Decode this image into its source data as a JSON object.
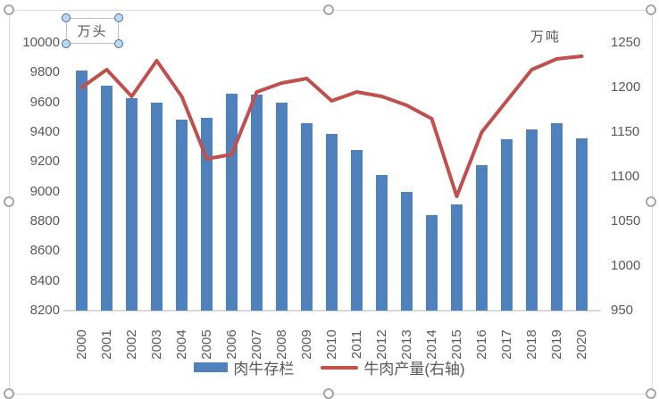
{
  "chart": {
    "textbox": {
      "label": "万头"
    },
    "right_axis_title": "万吨",
    "frame_color": "#D9D9D9",
    "handle_color": "#A6A6A6",
    "legend": [
      {
        "label": "肉牛存栏",
        "swatch": "bar",
        "color": "#4F81BD"
      },
      {
        "label": "牛肉产量(右轴)",
        "swatch": "line",
        "color": "#C0504D"
      }
    ]
  },
  "chart_data": {
    "type": "bar",
    "title": "",
    "grid": false,
    "legend_position": "bottom",
    "categories": [
      "2000",
      "2001",
      "2002",
      "2003",
      "2004",
      "2005",
      "2006",
      "2007",
      "2008",
      "2009",
      "2010",
      "2011",
      "2012",
      "2013",
      "2014",
      "2015",
      "2016",
      "2017",
      "2018",
      "2019",
      "2020"
    ],
    "series": [
      {
        "name": "肉牛存栏",
        "render": "bar",
        "axis": "left",
        "unit": "万头",
        "color": "#4F81BD",
        "values": [
          9815,
          9715,
          9630,
          9600,
          9485,
          9495,
          9660,
          9650,
          9600,
          9460,
          9390,
          9280,
          9110,
          9000,
          8840,
          8915,
          9180,
          9350,
          9420,
          9460,
          9360
        ]
      },
      {
        "name": "牛肉产量(右轴)",
        "render": "line",
        "axis": "right",
        "unit": "万吨",
        "color": "#C0504D",
        "values": [
          1200,
          1220,
          1190,
          1230,
          1190,
          1120,
          1125,
          1195,
          1205,
          1210,
          1185,
          1195,
          1190,
          1180,
          1165,
          1078,
          1150,
          1185,
          1220,
          1232,
          1235
        ]
      }
    ],
    "left_axis": {
      "label": "万头",
      "min": 8200,
      "max": 10000,
      "tick_step": 200,
      "ticks": [
        "10000",
        "9800",
        "9600",
        "9400",
        "9200",
        "9000",
        "8800",
        "8600",
        "8400",
        "8200"
      ]
    },
    "right_axis": {
      "label": "万吨",
      "min": 950,
      "max": 1250,
      "tick_step": 50,
      "ticks": [
        "1250",
        "1200",
        "1150",
        "1100",
        "1050",
        "1000",
        "950"
      ]
    }
  }
}
